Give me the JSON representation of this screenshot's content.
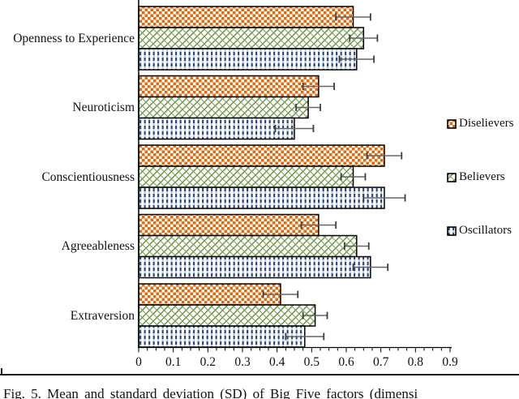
{
  "figure": {
    "caption": "Fig. 5. Mean and standard deviation (SD) of Big Five factors (dimensi"
  },
  "chart_data": {
    "type": "bar",
    "orientation": "horizontal",
    "title": "",
    "xlabel": "",
    "ylabel": "",
    "categories": [
      "Openness to Experience",
      "Neuroticism",
      "Conscientiousness",
      "Agreeableness",
      "Extraversion"
    ],
    "series": [
      {
        "name": "Diselievers",
        "pattern": "orange-checkerboard",
        "color": "#E2690B",
        "values": [
          0.62,
          0.52,
          0.71,
          0.52,
          0.41
        ],
        "sd": [
          0.05,
          0.045,
          0.05,
          0.05,
          0.05
        ]
      },
      {
        "name": "Believers",
        "pattern": "green-crosshatch",
        "color": "#5A8630",
        "values": [
          0.65,
          0.49,
          0.62,
          0.63,
          0.51
        ],
        "sd": [
          0.04,
          0.035,
          0.035,
          0.035,
          0.035
        ]
      },
      {
        "name": "Oscillators",
        "pattern": "blue-dash-grid",
        "color": "#24417E",
        "values": [
          0.63,
          0.45,
          0.71,
          0.67,
          0.48
        ],
        "sd": [
          0.05,
          0.055,
          0.06,
          0.05,
          0.055
        ]
      }
    ],
    "xlim": [
      0,
      0.9
    ],
    "x_tick_labels": [
      "0",
      "0.1",
      "0.2",
      "0.3",
      "0.4",
      "0.5",
      "0.6",
      "0.7",
      "0.8",
      "0.9"
    ],
    "minor_tick_step": 0.025,
    "grid": false,
    "error_bars": true,
    "legend_position": "right"
  }
}
